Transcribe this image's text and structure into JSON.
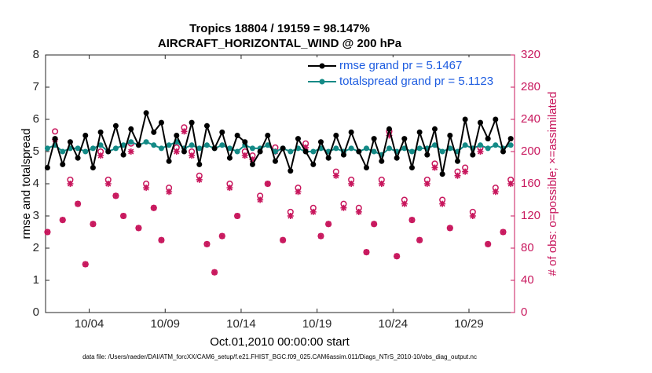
{
  "chart_data": {
    "type": "line",
    "title": "Tropics 18804 / 19159 = 98.147%",
    "subtitle": "AIRCRAFT_HORIZONTAL_WIND @ 200 hPa",
    "xlabel": "Oct.01,2010 00:00:00 start",
    "ylabel": "rmse and totalspread",
    "y2label": "# of obs: o=possible; ×=assimilated",
    "footnote": "data file: /Users/raeder/DAI/ATM_forcXX/CAM6_setup/f.e21.FHIST_BGC.f09_025.CAM6assim.011/Diags_NTrS_2010-10/obs_diag_output.nc",
    "x": [
      1.25,
      1.75,
      2.25,
      2.75,
      3.25,
      3.75,
      4.25,
      4.75,
      5.25,
      5.75,
      6.25,
      6.75,
      7.25,
      7.75,
      8.25,
      8.75,
      9.25,
      9.75,
      10.25,
      10.75,
      11.25,
      11.75,
      12.25,
      12.75,
      13.25,
      13.75,
      14.25,
      14.75,
      15.25,
      15.75,
      16.25,
      16.75,
      17.25,
      17.75,
      18.25,
      18.75,
      19.25,
      19.75,
      20.25,
      20.75,
      21.25,
      21.75,
      22.25,
      22.75,
      23.25,
      23.75,
      24.25,
      24.75,
      25.25,
      25.75,
      26.25,
      26.75,
      27.25,
      27.75,
      28.25,
      28.75,
      29.25,
      29.75,
      30.25,
      30.75,
      31.25,
      31.75
    ],
    "xlim": [
      1.125,
      32
    ],
    "xticks": [
      {
        "value": 4,
        "label": "10/04"
      },
      {
        "value": 9,
        "label": "10/09"
      },
      {
        "value": 14,
        "label": "10/14"
      },
      {
        "value": 19,
        "label": "10/19"
      },
      {
        "value": 24,
        "label": "10/24"
      },
      {
        "value": 29,
        "label": "10/29"
      }
    ],
    "ylim": [
      0,
      8
    ],
    "yticks": [
      0,
      1,
      2,
      3,
      4,
      5,
      6,
      7,
      8
    ],
    "y2lim": [
      0,
      320
    ],
    "y2ticks": [
      0,
      40,
      80,
      120,
      160,
      200,
      240,
      280,
      320
    ],
    "y2color": "#c8175d",
    "legend": "upper right",
    "series": [
      {
        "name": "rmse grand pr = 5.1467",
        "color": "#000000",
        "marker": "filled-circle",
        "values": [
          4.5,
          5.4,
          4.6,
          5.3,
          4.8,
          5.5,
          4.5,
          5.6,
          5.0,
          5.8,
          4.9,
          5.7,
          5.2,
          6.2,
          5.6,
          5.9,
          4.7,
          5.5,
          5.0,
          5.9,
          4.6,
          5.8,
          5.1,
          5.6,
          4.8,
          5.5,
          5.3,
          4.6,
          5.0,
          5.5,
          4.7,
          5.1,
          4.4,
          5.4,
          5.0,
          4.6,
          5.3,
          4.8,
          5.5,
          4.9,
          5.6,
          5.0,
          4.5,
          5.4,
          4.7,
          5.7,
          4.8,
          5.4,
          4.5,
          5.6,
          4.9,
          5.7,
          4.3,
          5.5,
          4.7,
          6.0,
          4.9,
          5.9,
          5.4,
          6.0,
          5.0,
          5.4
        ]
      },
      {
        "name": "totalspread grand pr = 5.1123",
        "color": "#138a86",
        "marker": "filled-circle",
        "values": [
          5.1,
          5.2,
          5.0,
          5.1,
          5.1,
          5.0,
          5.1,
          5.2,
          5.0,
          5.1,
          5.2,
          5.3,
          5.2,
          5.3,
          5.2,
          5.1,
          5.2,
          5.3,
          5.1,
          5.2,
          5.1,
          5.2,
          5.1,
          5.2,
          5.1,
          5.0,
          5.2,
          5.1,
          5.1,
          5.2,
          5.0,
          5.1,
          5.0,
          5.1,
          5.0,
          5.0,
          5.1,
          5.0,
          5.1,
          5.0,
          5.1,
          5.0,
          5.1,
          5.0,
          4.9,
          5.1,
          5.0,
          5.1,
          5.0,
          5.1,
          5.1,
          5.2,
          5.0,
          5.1,
          5.0,
          5.2,
          5.1,
          5.2,
          5.1,
          5.2,
          5.1,
          5.2
        ]
      },
      {
        "color": "#c8175d",
        "axis": "y2",
        "marker": "open-circle",
        "values": [
          100,
          225,
          115,
          165,
          135,
          60,
          110,
          200,
          165,
          145,
          120,
          210,
          105,
          160,
          130,
          90,
          155,
          205,
          230,
          200,
          170,
          85,
          50,
          95,
          160,
          120,
          200,
          195,
          145,
          160,
          205,
          90,
          125,
          155,
          210,
          130,
          95,
          110,
          175,
          135,
          165,
          130,
          75,
          110,
          165,
          225,
          70,
          140,
          115,
          90,
          165,
          185,
          140,
          105,
          175,
          180,
          125,
          205,
          85,
          155,
          100,
          165
        ]
      },
      {
        "color": "#c8175d",
        "axis": "y2",
        "marker": "asterisk",
        "values": [
          100,
          215,
          115,
          160,
          135,
          60,
          110,
          195,
          160,
          145,
          120,
          200,
          105,
          155,
          130,
          90,
          150,
          200,
          225,
          195,
          165,
          85,
          50,
          95,
          155,
          120,
          195,
          190,
          140,
          160,
          200,
          90,
          120,
          150,
          205,
          125,
          95,
          110,
          170,
          130,
          160,
          125,
          75,
          110,
          160,
          220,
          70,
          135,
          115,
          90,
          160,
          180,
          135,
          105,
          170,
          175,
          120,
          200,
          85,
          150,
          100,
          160
        ]
      }
    ]
  }
}
